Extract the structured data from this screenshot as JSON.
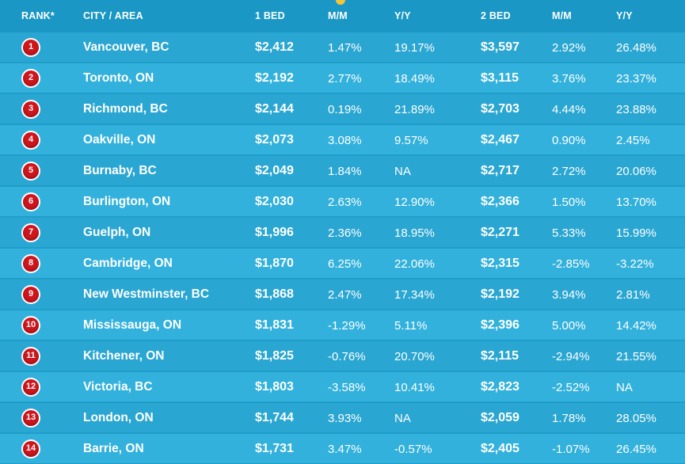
{
  "chart_data": {
    "type": "table",
    "columns": [
      "RANK*",
      "CITY / AREA",
      "1 BED",
      "M/M",
      "Y/Y",
      "2 BED",
      "M/M",
      "Y/Y"
    ],
    "rows": [
      {
        "rank": "1",
        "city": "Vancouver, BC",
        "bed1": "$2,412",
        "mm1": "1.47%",
        "yy1": "19.17%",
        "bed2": "$3,597",
        "mm2": "2.92%",
        "yy2": "26.48%"
      },
      {
        "rank": "2",
        "city": "Toronto, ON",
        "bed1": "$2,192",
        "mm1": "2.77%",
        "yy1": "18.49%",
        "bed2": "$3,115",
        "mm2": "3.76%",
        "yy2": "23.37%"
      },
      {
        "rank": "3",
        "city": "Richmond, BC",
        "bed1": "$2,144",
        "mm1": "0.19%",
        "yy1": "21.89%",
        "bed2": "$2,703",
        "mm2": "4.44%",
        "yy2": "23.88%"
      },
      {
        "rank": "4",
        "city": "Oakville, ON",
        "bed1": "$2,073",
        "mm1": "3.08%",
        "yy1": "9.57%",
        "bed2": "$2,467",
        "mm2": "0.90%",
        "yy2": "2.45%"
      },
      {
        "rank": "5",
        "city": "Burnaby, BC",
        "bed1": "$2,049",
        "mm1": "1.84%",
        "yy1": "NA",
        "bed2": "$2,717",
        "mm2": "2.72%",
        "yy2": "20.06%"
      },
      {
        "rank": "6",
        "city": "Burlington, ON",
        "bed1": "$2,030",
        "mm1": "2.63%",
        "yy1": "12.90%",
        "bed2": "$2,366",
        "mm2": "1.50%",
        "yy2": "13.70%"
      },
      {
        "rank": "7",
        "city": "Guelph, ON",
        "bed1": "$1,996",
        "mm1": "2.36%",
        "yy1": "18.95%",
        "bed2": "$2,271",
        "mm2": "5.33%",
        "yy2": "15.99%"
      },
      {
        "rank": "8",
        "city": "Cambridge, ON",
        "bed1": "$1,870",
        "mm1": "6.25%",
        "yy1": "22.06%",
        "bed2": "$2,315",
        "mm2": "-2.85%",
        "yy2": "-3.22%"
      },
      {
        "rank": "9",
        "city": "New Westminster, BC",
        "bed1": "$1,868",
        "mm1": "2.47%",
        "yy1": "17.34%",
        "bed2": "$2,192",
        "mm2": "3.94%",
        "yy2": "2.81%"
      },
      {
        "rank": "10",
        "city": "Mississauga, ON",
        "bed1": "$1,831",
        "mm1": "-1.29%",
        "yy1": "5.11%",
        "bed2": "$2,396",
        "mm2": "5.00%",
        "yy2": "14.42%"
      },
      {
        "rank": "11",
        "city": "Kitchener, ON",
        "bed1": "$1,825",
        "mm1": "-0.76%",
        "yy1": "20.70%",
        "bed2": "$2,115",
        "mm2": "-2.94%",
        "yy2": "21.55%"
      },
      {
        "rank": "12",
        "city": "Victoria, BC",
        "bed1": "$1,803",
        "mm1": "-3.58%",
        "yy1": "10.41%",
        "bed2": "$2,823",
        "mm2": "-2.52%",
        "yy2": "NA"
      },
      {
        "rank": "13",
        "city": "London, ON",
        "bed1": "$1,744",
        "mm1": "3.93%",
        "yy1": "NA",
        "bed2": "$2,059",
        "mm2": "1.78%",
        "yy2": "28.05%"
      },
      {
        "rank": "14",
        "city": "Barrie, ON",
        "bed1": "$1,731",
        "mm1": "3.47%",
        "yy1": "-0.57%",
        "bed2": "$2,405",
        "mm2": "-1.07%",
        "yy2": "26.45%"
      }
    ]
  },
  "colors": {
    "background": "#1f9dc9",
    "row_odd": "#2aa6d2",
    "row_even": "#32b1dc",
    "badge_red": "#d0161d",
    "text": "#ffffff"
  }
}
